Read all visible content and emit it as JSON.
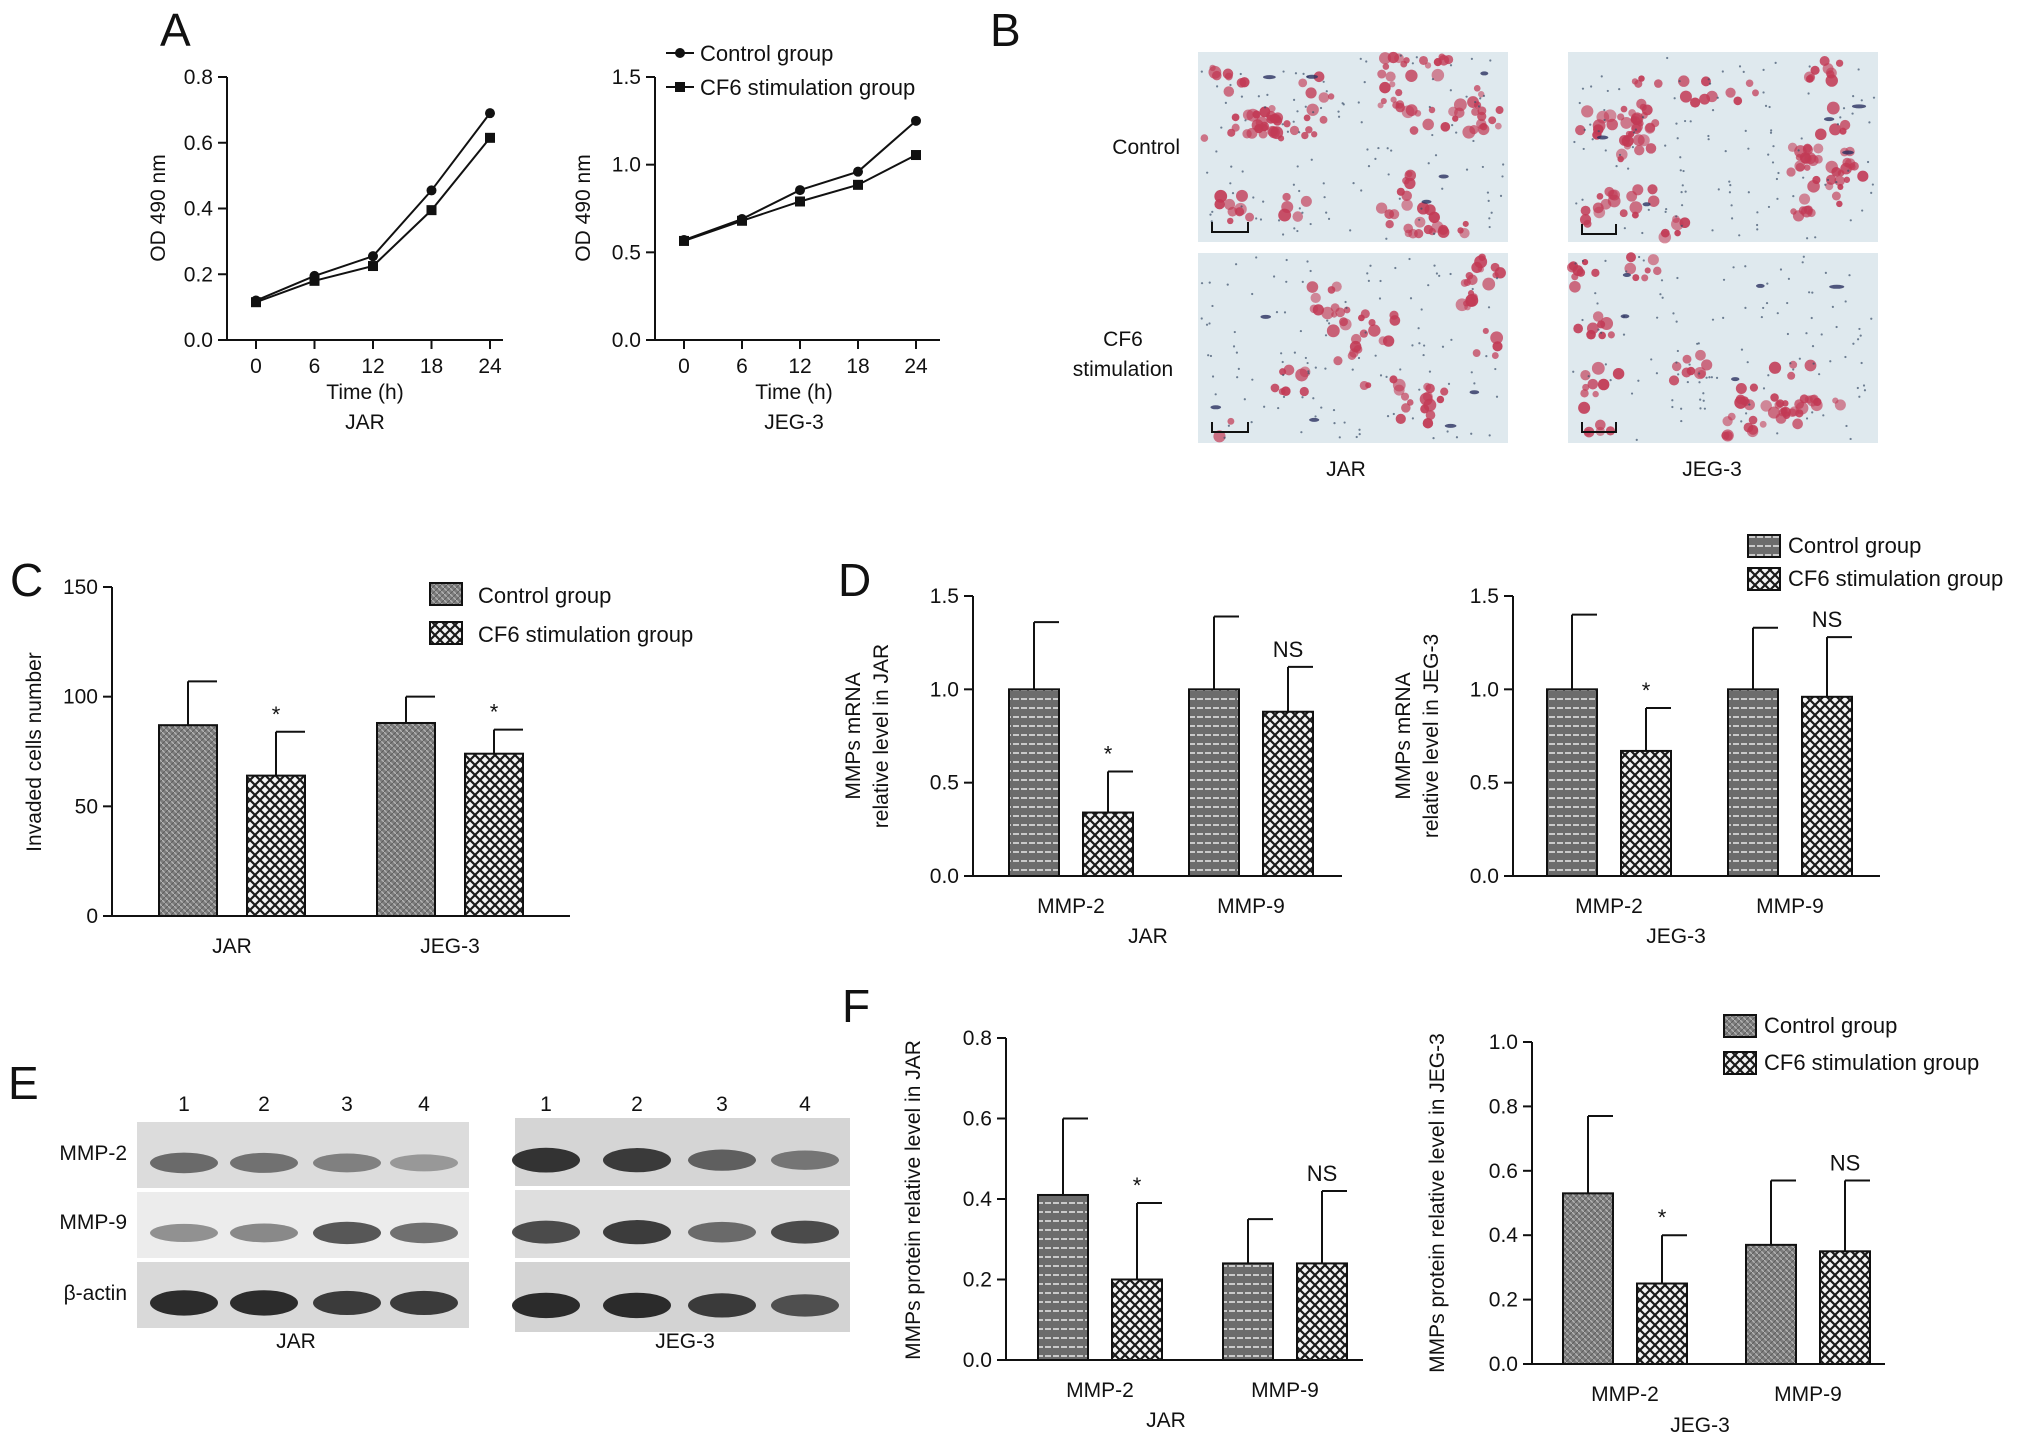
{
  "figure": {
    "panel_letters": {
      "A": "A",
      "B": "B",
      "C": "C",
      "D": "D",
      "E": "E",
      "F": "F"
    },
    "legend": {
      "control": "Control group",
      "cf6": "CF6 stimulation group"
    },
    "colors": {
      "control_fill": "#8a8a8a",
      "cf6_fill": "#f2f2f2",
      "stroke": "#111111",
      "stain_red": "#c23a55",
      "stain_bg": "#dfe9ee"
    }
  },
  "micrographs": {
    "row_labels": [
      "Control",
      "CF6",
      "stimulation"
    ],
    "col_labels": [
      "JAR",
      "JEG-3"
    ]
  },
  "blots": {
    "lane_numbers": [
      "1",
      "2",
      "3",
      "4"
    ],
    "row_labels": [
      "MMP-2",
      "MMP-9",
      "β-actin"
    ],
    "cell_lines": [
      "JAR",
      "JEG-3"
    ],
    "intensities": {
      "JAR": {
        "MMP-2": [
          0.55,
          0.5,
          0.4,
          0.25
        ],
        "MMP-9": [
          0.35,
          0.4,
          0.7,
          0.55
        ],
        "beta-actin": [
          0.95,
          0.95,
          0.85,
          0.85
        ]
      },
      "JEG-3": {
        "MMP-2": [
          0.9,
          0.85,
          0.6,
          0.45
        ],
        "MMP-9": [
          0.75,
          0.85,
          0.55,
          0.75
        ],
        "beta-actin": [
          0.95,
          0.95,
          0.85,
          0.7
        ]
      }
    }
  },
  "chart_data": [
    {
      "id": "A-JAR",
      "type": "line",
      "x": [
        0,
        6,
        12,
        18,
        24
      ],
      "series": [
        {
          "name": "Control group",
          "values": [
            0.12,
            0.195,
            0.255,
            0.455,
            0.69
          ]
        },
        {
          "name": "CF6 stimulation group",
          "values": [
            0.115,
            0.18,
            0.225,
            0.395,
            0.615
          ]
        }
      ],
      "xlabel": "Time (h)",
      "ylabel": "OD 490 nm",
      "caption": "JAR",
      "ylim": [
        0,
        0.8
      ],
      "yticks": [
        "0.0",
        "0.2",
        "0.4",
        "0.6",
        "0.8"
      ],
      "xticks": [
        "0",
        "6",
        "12",
        "18",
        "24"
      ]
    },
    {
      "id": "A-JEG-3",
      "type": "line",
      "x": [
        0,
        6,
        12,
        18,
        24
      ],
      "series": [
        {
          "name": "Control group",
          "values": [
            0.57,
            0.69,
            0.855,
            0.96,
            1.25
          ]
        },
        {
          "name": "CF6 stimulation group",
          "values": [
            0.565,
            0.68,
            0.79,
            0.885,
            1.055
          ]
        }
      ],
      "xlabel": "Time (h)",
      "ylabel": "OD 490 nm",
      "caption": "JEG-3",
      "ylim": [
        0,
        1.5
      ],
      "yticks": [
        "0.0",
        "0.5",
        "1.0",
        "1.5"
      ],
      "xticks": [
        "0",
        "6",
        "12",
        "18",
        "24"
      ],
      "legend": "top-left"
    },
    {
      "id": "C",
      "type": "bar",
      "categories": [
        "JAR",
        "JEG-3"
      ],
      "series": [
        {
          "name": "Control group",
          "values": [
            87,
            88
          ],
          "errors": [
            20,
            12
          ]
        },
        {
          "name": "CF6 stimulation group",
          "values": [
            64,
            74
          ],
          "errors": [
            20,
            11
          ]
        }
      ],
      "significance": [
        "*",
        "*"
      ],
      "ylabel": "Invaded cells number",
      "ylim": [
        0,
        150
      ],
      "yticks": [
        "0",
        "50",
        "100",
        "150"
      ],
      "legend": "top-right"
    },
    {
      "id": "D-JAR",
      "type": "bar",
      "categories": [
        "MMP-2",
        "MMP-9"
      ],
      "series": [
        {
          "name": "Control group",
          "values": [
            1.0,
            1.0
          ],
          "errors": [
            0.36,
            0.39
          ]
        },
        {
          "name": "CF6 stimulation group",
          "values": [
            0.34,
            0.88
          ],
          "errors": [
            0.22,
            0.24
          ]
        }
      ],
      "significance": [
        "*",
        "NS"
      ],
      "ylabel": [
        "MMPs mRNA",
        "relative level in JAR"
      ],
      "xlabel": "JAR",
      "ylim": [
        0,
        1.5
      ],
      "yticks": [
        "0.0",
        "0.5",
        "1.0",
        "1.5"
      ]
    },
    {
      "id": "D-JEG-3",
      "type": "bar",
      "categories": [
        "MMP-2",
        "MMP-9"
      ],
      "series": [
        {
          "name": "Control group",
          "values": [
            1.0,
            1.0
          ],
          "errors": [
            0.4,
            0.33
          ]
        },
        {
          "name": "CF6 stimulation group",
          "values": [
            0.67,
            0.96
          ],
          "errors": [
            0.23,
            0.32
          ]
        }
      ],
      "significance": [
        "*",
        "NS"
      ],
      "ylabel": [
        "MMPs mRNA",
        "relative level in JEG-3"
      ],
      "xlabel": "JEG-3",
      "ylim": [
        0,
        1.5
      ],
      "yticks": [
        "0.0",
        "0.5",
        "1.0",
        "1.5"
      ],
      "legend": "top-right"
    },
    {
      "id": "F-JAR",
      "type": "bar",
      "categories": [
        "MMP-2",
        "MMP-9"
      ],
      "series": [
        {
          "name": "Control group",
          "values": [
            0.41,
            0.24
          ],
          "errors": [
            0.19,
            0.11
          ]
        },
        {
          "name": "CF6 stimulation group",
          "values": [
            0.2,
            0.24
          ],
          "errors": [
            0.19,
            0.18
          ]
        }
      ],
      "significance": [
        "*",
        "NS"
      ],
      "ylabel": "MMPs protein relative level in JAR",
      "xlabel": "JAR",
      "ylim": [
        0,
        0.8
      ],
      "yticks": [
        "0.0",
        "0.2",
        "0.4",
        "0.6",
        "0.8"
      ]
    },
    {
      "id": "F-JEG-3",
      "type": "bar",
      "categories": [
        "MMP-2",
        "MMP-9"
      ],
      "series": [
        {
          "name": "Control group",
          "values": [
            0.53,
            0.37
          ],
          "errors": [
            0.24,
            0.2
          ]
        },
        {
          "name": "CF6 stimulation group",
          "values": [
            0.25,
            0.35
          ],
          "errors": [
            0.15,
            0.22
          ]
        }
      ],
      "significance": [
        "*",
        "NS"
      ],
      "ylabel": "MMPs protein relative level in JEG-3",
      "xlabel": "JEG-3",
      "ylim": [
        0,
        1.0
      ],
      "yticks": [
        "0.0",
        "0.2",
        "0.4",
        "0.6",
        "0.8",
        "1.0"
      ],
      "legend": "top-right"
    }
  ]
}
